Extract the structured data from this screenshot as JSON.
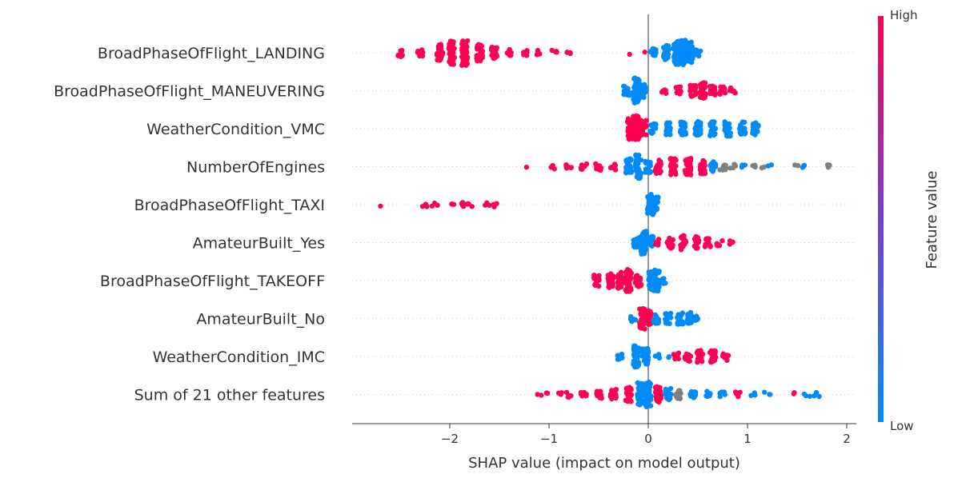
{
  "chart_data": {
    "type": "scatter",
    "xlabel": "SHAP value (impact on model output)",
    "xlim": [
      -2.95,
      2.05
    ],
    "xticks": [
      {
        "value": -2,
        "label": "−2"
      },
      {
        "value": -1,
        "label": "−1"
      },
      {
        "value": 0,
        "label": "0"
      },
      {
        "value": 1,
        "label": "1"
      },
      {
        "value": 2,
        "label": "2"
      }
    ],
    "colorbar": {
      "title": "Feature value",
      "high_label": "High",
      "low_label": "Low",
      "high_color": "#ff0052",
      "low_color": "#008bfb"
    },
    "missing_color": "#808080",
    "zero_line": true,
    "features": [
      {
        "name": "BroadPhaseOfFlight_LANDING",
        "points": [
          [
            -2.5,
            "h",
            10
          ],
          [
            -2.3,
            "h",
            12
          ],
          [
            -2.1,
            "h",
            30
          ],
          [
            -1.98,
            "h",
            45
          ],
          [
            -1.85,
            "h",
            60
          ],
          [
            -1.7,
            "h",
            30
          ],
          [
            -1.55,
            "h",
            20
          ],
          [
            -1.4,
            "h",
            8
          ],
          [
            -1.25,
            "h",
            6
          ],
          [
            -1.1,
            "h",
            5
          ],
          [
            -0.95,
            "h",
            4
          ],
          [
            -0.8,
            "h",
            4
          ],
          [
            -0.2,
            "h",
            1
          ],
          [
            -0.05,
            "h",
            1
          ],
          [
            0.05,
            "l",
            12
          ],
          [
            0.18,
            "l",
            25
          ],
          [
            0.28,
            "l",
            45
          ],
          [
            0.35,
            "l",
            70
          ],
          [
            0.42,
            "l",
            40
          ],
          [
            0.5,
            "l",
            10
          ]
        ]
      },
      {
        "name": "BroadPhaseOfFlight_MANEUVERING",
        "points": [
          [
            -0.22,
            "l",
            15
          ],
          [
            -0.12,
            "l",
            60
          ],
          [
            -0.05,
            "l",
            25
          ],
          [
            0.15,
            "h",
            6
          ],
          [
            0.3,
            "h",
            12
          ],
          [
            0.45,
            "h",
            20
          ],
          [
            0.55,
            "h",
            28
          ],
          [
            0.65,
            "h",
            15
          ],
          [
            0.75,
            "h",
            10
          ],
          [
            0.85,
            "h",
            6
          ]
        ]
      },
      {
        "name": "WeatherCondition_VMC",
        "points": [
          [
            -0.18,
            "h",
            40
          ],
          [
            -0.12,
            "h",
            70
          ],
          [
            -0.05,
            "h",
            30
          ],
          [
            0.05,
            "l",
            15
          ],
          [
            0.2,
            "l",
            20
          ],
          [
            0.35,
            "l",
            22
          ],
          [
            0.5,
            "l",
            25
          ],
          [
            0.65,
            "l",
            25
          ],
          [
            0.8,
            "l",
            30
          ],
          [
            0.95,
            "l",
            25
          ],
          [
            1.08,
            "l",
            20
          ]
        ]
      },
      {
        "name": "NumberOfEngines",
        "points": [
          [
            -1.25,
            "h",
            1
          ],
          [
            -0.95,
            "h",
            4
          ],
          [
            -0.8,
            "h",
            6
          ],
          [
            -0.65,
            "h",
            8
          ],
          [
            -0.5,
            "h",
            10
          ],
          [
            -0.35,
            "h",
            12
          ],
          [
            -0.2,
            "l",
            30
          ],
          [
            -0.1,
            "l",
            45
          ],
          [
            0.0,
            "l",
            20
          ],
          [
            0.1,
            "h",
            25
          ],
          [
            0.25,
            "h",
            30
          ],
          [
            0.4,
            "h",
            30
          ],
          [
            0.55,
            "h",
            25
          ],
          [
            0.65,
            "l",
            15
          ],
          [
            0.75,
            "m",
            12
          ],
          [
            0.85,
            "m",
            6
          ],
          [
            0.95,
            "l",
            3
          ],
          [
            1.05,
            "m",
            3
          ],
          [
            1.15,
            "m",
            2
          ],
          [
            1.22,
            "l",
            2
          ],
          [
            1.5,
            "m",
            2
          ],
          [
            1.58,
            "l",
            3
          ],
          [
            1.8,
            "m",
            3
          ]
        ]
      },
      {
        "name": "BroadPhaseOfFlight_TAXI",
        "points": [
          [
            -2.72,
            "h",
            1
          ],
          [
            -2.25,
            "h",
            4
          ],
          [
            -2.15,
            "h",
            3
          ],
          [
            -1.98,
            "h",
            3
          ],
          [
            -1.88,
            "h",
            4
          ],
          [
            -1.8,
            "h",
            3
          ],
          [
            -1.62,
            "h",
            3
          ],
          [
            -1.55,
            "h",
            3
          ],
          [
            0.02,
            "l",
            40
          ],
          [
            0.07,
            "l",
            30
          ]
        ]
      },
      {
        "name": "AmateurBuilt_Yes",
        "points": [
          [
            -0.12,
            "l",
            15
          ],
          [
            -0.05,
            "l",
            45
          ],
          [
            0.02,
            "l",
            20
          ],
          [
            0.1,
            "h",
            8
          ],
          [
            0.22,
            "h",
            18
          ],
          [
            0.35,
            "h",
            25
          ],
          [
            0.48,
            "h",
            20
          ],
          [
            0.6,
            "h",
            15
          ],
          [
            0.72,
            "h",
            8
          ],
          [
            0.85,
            "h",
            3
          ]
        ]
      },
      {
        "name": "BroadPhaseOfFlight_TAKEOFF",
        "points": [
          [
            -0.52,
            "h",
            18
          ],
          [
            -0.38,
            "h",
            25
          ],
          [
            -0.28,
            "h",
            30
          ],
          [
            -0.2,
            "h",
            45
          ],
          [
            -0.1,
            "h",
            20
          ],
          [
            0.03,
            "l",
            35
          ],
          [
            0.08,
            "l",
            40
          ],
          [
            0.15,
            "l",
            6
          ]
        ]
      },
      {
        "name": "AmateurBuilt_No",
        "points": [
          [
            -0.15,
            "l",
            6
          ],
          [
            -0.06,
            "h",
            40
          ],
          [
            0.0,
            "h",
            30
          ],
          [
            0.08,
            "l",
            15
          ],
          [
            0.2,
            "l",
            18
          ],
          [
            0.32,
            "l",
            20
          ],
          [
            0.42,
            "l",
            20
          ],
          [
            0.48,
            "l",
            6
          ]
        ]
      },
      {
        "name": "WeatherCondition_IMC",
        "points": [
          [
            -0.28,
            "l",
            10
          ],
          [
            -0.12,
            "l",
            40
          ],
          [
            -0.03,
            "l",
            30
          ],
          [
            0.1,
            "l",
            4
          ],
          [
            0.2,
            "l",
            2
          ],
          [
            0.28,
            "h",
            10
          ],
          [
            0.4,
            "h",
            16
          ],
          [
            0.52,
            "h",
            20
          ],
          [
            0.65,
            "h",
            20
          ],
          [
            0.78,
            "h",
            10
          ]
        ]
      },
      {
        "name": "Sum of 21 other features",
        "points": [
          [
            -1.1,
            "h",
            2
          ],
          [
            -1.0,
            "h",
            2
          ],
          [
            -0.9,
            "h",
            3
          ],
          [
            -0.8,
            "h",
            5
          ],
          [
            -0.65,
            "h",
            8
          ],
          [
            -0.5,
            "h",
            12
          ],
          [
            -0.35,
            "h",
            18
          ],
          [
            -0.2,
            "h",
            25
          ],
          [
            -0.08,
            "l",
            45
          ],
          [
            0.0,
            "l",
            50
          ],
          [
            0.1,
            "h",
            30
          ],
          [
            0.2,
            "l",
            20
          ],
          [
            0.3,
            "m",
            12
          ],
          [
            0.45,
            "l",
            10
          ],
          [
            0.6,
            "l",
            8
          ],
          [
            0.75,
            "l",
            6
          ],
          [
            0.9,
            "h",
            4
          ],
          [
            1.05,
            "l",
            4
          ],
          [
            1.2,
            "l",
            3
          ],
          [
            1.45,
            "h",
            2
          ],
          [
            1.6,
            "l",
            3
          ],
          [
            1.7,
            "l",
            3
          ]
        ]
      }
    ]
  }
}
